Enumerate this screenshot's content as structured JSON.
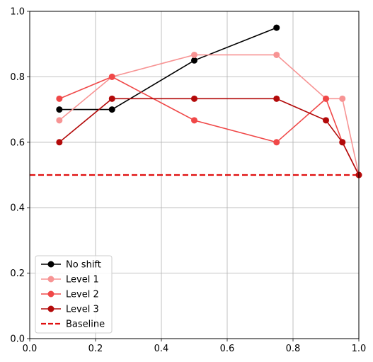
{
  "chart_data": {
    "type": "line",
    "title": "",
    "xlabel": "",
    "ylabel": "",
    "xlim": [
      0,
      1
    ],
    "ylim": [
      0,
      1
    ],
    "xticks": [
      "0.0",
      "0.2",
      "0.4",
      "0.6",
      "0.8",
      "1.0"
    ],
    "yticks": [
      "0.0",
      "0.2",
      "0.4",
      "0.6",
      "0.8",
      "1.0"
    ],
    "grid": true,
    "legend_position": "lower-left",
    "series": [
      {
        "name": "No shift",
        "color": "#000000",
        "marker": "circle",
        "x": [
          0.09,
          0.25,
          0.5,
          0.75
        ],
        "y": [
          0.7,
          0.7,
          0.85,
          0.95
        ]
      },
      {
        "name": "Level 1",
        "color": "#f79494",
        "marker": "circle",
        "x": [
          0.09,
          0.25,
          0.5,
          0.75,
          0.9,
          0.95,
          1.0
        ],
        "y": [
          0.667,
          0.8,
          0.867,
          0.867,
          0.733,
          0.733,
          0.5
        ]
      },
      {
        "name": "Level 2",
        "color": "#f04848",
        "marker": "circle",
        "x": [
          0.09,
          0.25,
          0.5,
          0.75,
          0.9,
          0.95,
          1.0
        ],
        "y": [
          0.733,
          0.8,
          0.667,
          0.6,
          0.733,
          0.6,
          0.5
        ]
      },
      {
        "name": "Level 3",
        "color": "#b30a0a",
        "marker": "circle",
        "x": [
          0.09,
          0.25,
          0.5,
          0.75,
          0.9,
          0.95,
          1.0
        ],
        "y": [
          0.6,
          0.733,
          0.733,
          0.733,
          0.667,
          0.6,
          0.5
        ]
      }
    ],
    "reference_lines": [
      {
        "name": "Baseline",
        "orientation": "horizontal",
        "y": 0.5,
        "color": "#e01010",
        "style": "dashed"
      }
    ]
  }
}
